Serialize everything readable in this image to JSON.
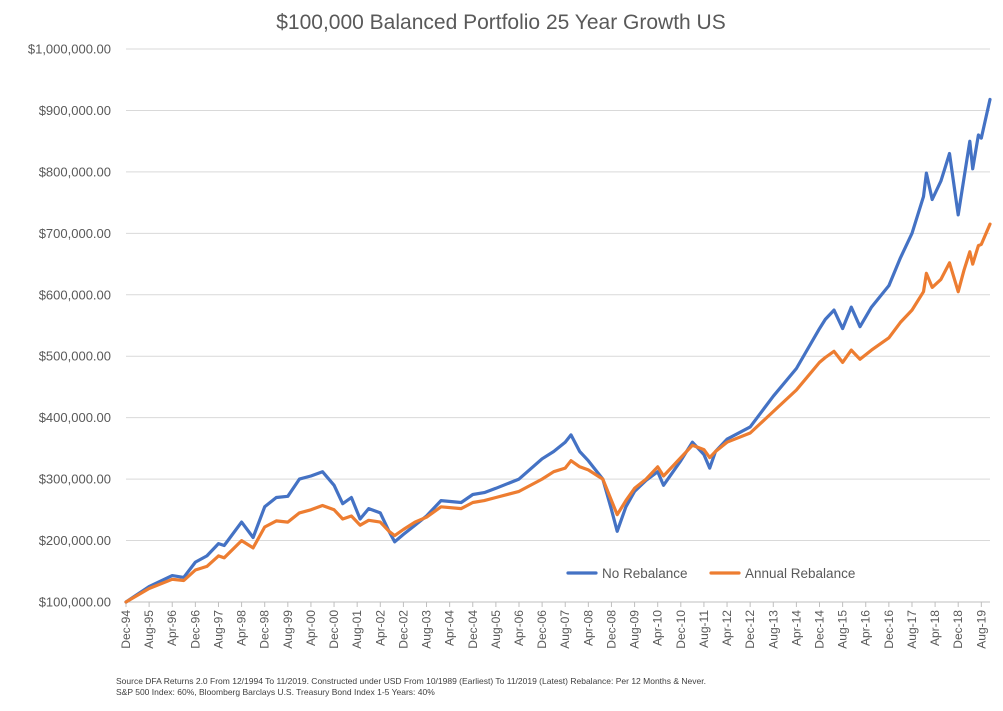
{
  "chart_data": {
    "type": "line",
    "title": "$100,000 Balanced Portfolio 25 Year Growth US",
    "xlabel": "",
    "ylabel": "",
    "ylim": [
      100000,
      1000000
    ],
    "y_ticks": [
      100000,
      200000,
      300000,
      400000,
      500000,
      600000,
      700000,
      800000,
      900000,
      1000000
    ],
    "y_tick_labels": [
      "$100,000.00",
      "$200,000.00",
      "$300,000.00",
      "$400,000.00",
      "$500,000.00",
      "$600,000.00",
      "$700,000.00",
      "$800,000.00",
      "$900,000.00",
      "$1,000,000.00"
    ],
    "x_range": [
      "1994-12",
      "2019-11"
    ],
    "x_ticks": [
      "1994-12",
      "1995-08",
      "1996-04",
      "1996-12",
      "1997-08",
      "1998-04",
      "1998-12",
      "1999-08",
      "2000-04",
      "2000-12",
      "2001-08",
      "2002-04",
      "2002-12",
      "2003-08",
      "2004-04",
      "2004-12",
      "2005-08",
      "2006-04",
      "2006-12",
      "2007-08",
      "2008-04",
      "2008-12",
      "2009-08",
      "2010-04",
      "2010-12",
      "2011-08",
      "2012-04",
      "2012-12",
      "2013-08",
      "2014-04",
      "2014-12",
      "2015-08",
      "2016-04",
      "2016-12",
      "2017-08",
      "2018-04",
      "2018-12",
      "2019-08"
    ],
    "x_tick_labels": [
      "Dec-94",
      "Aug-95",
      "Apr-96",
      "Dec-96",
      "Aug-97",
      "Apr-98",
      "Dec-98",
      "Aug-99",
      "Apr-00",
      "Dec-00",
      "Aug-01",
      "Apr-02",
      "Dec-02",
      "Aug-03",
      "Apr-04",
      "Dec-04",
      "Aug-05",
      "Apr-06",
      "Dec-06",
      "Aug-07",
      "Apr-08",
      "Dec-08",
      "Aug-09",
      "Apr-10",
      "Dec-10",
      "Aug-11",
      "Apr-12",
      "Dec-12",
      "Aug-13",
      "Apr-14",
      "Dec-14",
      "Aug-15",
      "Apr-16",
      "Dec-16",
      "Aug-17",
      "Apr-18",
      "Dec-18",
      "Aug-19"
    ],
    "grid": "horizontal",
    "legend": "bottom-right, inside plot",
    "series": [
      {
        "name": "No Rebalance",
        "color": "#4472C4",
        "points": [
          [
            "1994-12",
            100000
          ],
          [
            "1995-08",
            125000
          ],
          [
            "1996-04",
            143000
          ],
          [
            "1996-08",
            140000
          ],
          [
            "1996-12",
            165000
          ],
          [
            "1997-04",
            175000
          ],
          [
            "1997-08",
            195000
          ],
          [
            "1997-10",
            192000
          ],
          [
            "1998-04",
            230000
          ],
          [
            "1998-08",
            205000
          ],
          [
            "1998-12",
            255000
          ],
          [
            "1999-04",
            270000
          ],
          [
            "1999-08",
            272000
          ],
          [
            "1999-12",
            300000
          ],
          [
            "2000-04",
            305000
          ],
          [
            "2000-08",
            312000
          ],
          [
            "2000-12",
            290000
          ],
          [
            "2001-03",
            260000
          ],
          [
            "2001-06",
            270000
          ],
          [
            "2001-09",
            235000
          ],
          [
            "2001-12",
            252000
          ],
          [
            "2002-04",
            245000
          ],
          [
            "2002-07",
            215000
          ],
          [
            "2002-09",
            198000
          ],
          [
            "2002-12",
            210000
          ],
          [
            "2003-04",
            225000
          ],
          [
            "2003-08",
            240000
          ],
          [
            "2004-01",
            265000
          ],
          [
            "2004-08",
            262000
          ],
          [
            "2004-12",
            275000
          ],
          [
            "2005-04",
            278000
          ],
          [
            "2005-08",
            285000
          ],
          [
            "2006-04",
            300000
          ],
          [
            "2006-12",
            333000
          ],
          [
            "2007-04",
            345000
          ],
          [
            "2007-08",
            360000
          ],
          [
            "2007-10",
            372000
          ],
          [
            "2008-01",
            345000
          ],
          [
            "2008-04",
            330000
          ],
          [
            "2008-09",
            300000
          ],
          [
            "2008-12",
            250000
          ],
          [
            "2009-02",
            215000
          ],
          [
            "2009-05",
            255000
          ],
          [
            "2009-08",
            280000
          ],
          [
            "2009-12",
            298000
          ],
          [
            "2010-04",
            312000
          ],
          [
            "2010-06",
            290000
          ],
          [
            "2010-12",
            330000
          ],
          [
            "2011-04",
            360000
          ],
          [
            "2011-08",
            340000
          ],
          [
            "2011-10",
            318000
          ],
          [
            "2011-12",
            345000
          ],
          [
            "2012-04",
            365000
          ],
          [
            "2012-12",
            385000
          ],
          [
            "2013-08",
            435000
          ],
          [
            "2014-04",
            480000
          ],
          [
            "2014-12",
            545000
          ],
          [
            "2015-02",
            560000
          ],
          [
            "2015-05",
            575000
          ],
          [
            "2015-08",
            545000
          ],
          [
            "2015-11",
            580000
          ],
          [
            "2016-02",
            548000
          ],
          [
            "2016-06",
            580000
          ],
          [
            "2016-12",
            615000
          ],
          [
            "2017-04",
            660000
          ],
          [
            "2017-08",
            700000
          ],
          [
            "2017-12",
            760000
          ],
          [
            "2018-01",
            798000
          ],
          [
            "2018-03",
            755000
          ],
          [
            "2018-06",
            785000
          ],
          [
            "2018-09",
            830000
          ],
          [
            "2018-12",
            730000
          ],
          [
            "2019-02",
            790000
          ],
          [
            "2019-04",
            850000
          ],
          [
            "2019-05",
            805000
          ],
          [
            "2019-07",
            860000
          ],
          [
            "2019-08",
            855000
          ],
          [
            "2019-11",
            918000
          ]
        ]
      },
      {
        "name": "Annual Rebalance",
        "color": "#ED7D31",
        "points": [
          [
            "1994-12",
            100000
          ],
          [
            "1995-08",
            122000
          ],
          [
            "1996-04",
            137000
          ],
          [
            "1996-08",
            135000
          ],
          [
            "1996-12",
            152000
          ],
          [
            "1997-04",
            158000
          ],
          [
            "1997-08",
            175000
          ],
          [
            "1997-10",
            172000
          ],
          [
            "1998-04",
            200000
          ],
          [
            "1998-08",
            188000
          ],
          [
            "1998-12",
            222000
          ],
          [
            "1999-04",
            232000
          ],
          [
            "1999-08",
            230000
          ],
          [
            "1999-12",
            245000
          ],
          [
            "2000-04",
            250000
          ],
          [
            "2000-08",
            257000
          ],
          [
            "2000-12",
            250000
          ],
          [
            "2001-03",
            235000
          ],
          [
            "2001-06",
            240000
          ],
          [
            "2001-09",
            225000
          ],
          [
            "2001-12",
            233000
          ],
          [
            "2002-04",
            230000
          ],
          [
            "2002-07",
            215000
          ],
          [
            "2002-09",
            208000
          ],
          [
            "2002-12",
            218000
          ],
          [
            "2003-04",
            230000
          ],
          [
            "2003-08",
            238000
          ],
          [
            "2004-01",
            255000
          ],
          [
            "2004-08",
            252000
          ],
          [
            "2004-12",
            262000
          ],
          [
            "2005-04",
            265000
          ],
          [
            "2005-08",
            270000
          ],
          [
            "2006-04",
            280000
          ],
          [
            "2006-12",
            300000
          ],
          [
            "2007-04",
            312000
          ],
          [
            "2007-08",
            318000
          ],
          [
            "2007-10",
            330000
          ],
          [
            "2008-01",
            320000
          ],
          [
            "2008-04",
            315000
          ],
          [
            "2008-09",
            300000
          ],
          [
            "2008-12",
            265000
          ],
          [
            "2009-02",
            242000
          ],
          [
            "2009-05",
            265000
          ],
          [
            "2009-08",
            285000
          ],
          [
            "2009-12",
            300000
          ],
          [
            "2010-04",
            320000
          ],
          [
            "2010-06",
            305000
          ],
          [
            "2010-12",
            335000
          ],
          [
            "2011-04",
            355000
          ],
          [
            "2011-08",
            348000
          ],
          [
            "2011-10",
            335000
          ],
          [
            "2011-12",
            345000
          ],
          [
            "2012-04",
            360000
          ],
          [
            "2012-12",
            375000
          ],
          [
            "2013-08",
            410000
          ],
          [
            "2014-04",
            445000
          ],
          [
            "2014-12",
            490000
          ],
          [
            "2015-02",
            498000
          ],
          [
            "2015-05",
            508000
          ],
          [
            "2015-08",
            490000
          ],
          [
            "2015-11",
            510000
          ],
          [
            "2016-02",
            495000
          ],
          [
            "2016-06",
            510000
          ],
          [
            "2016-12",
            530000
          ],
          [
            "2017-04",
            555000
          ],
          [
            "2017-08",
            575000
          ],
          [
            "2017-12",
            605000
          ],
          [
            "2018-01",
            635000
          ],
          [
            "2018-03",
            612000
          ],
          [
            "2018-06",
            625000
          ],
          [
            "2018-09",
            652000
          ],
          [
            "2018-12",
            605000
          ],
          [
            "2019-02",
            640000
          ],
          [
            "2019-04",
            670000
          ],
          [
            "2019-05",
            650000
          ],
          [
            "2019-07",
            680000
          ],
          [
            "2019-08",
            682000
          ],
          [
            "2019-11",
            715000
          ]
        ]
      }
    ]
  },
  "footnote": {
    "line1": "Source DFA Returns 2.0 From 12/1994 To 11/2019. Constructed under USD From 10/1989 (Earliest) To 11/2019 (Latest) Rebalance: Per 12 Months & Never.",
    "line2": "S&P 500 Index: 60%, Bloomberg Barclays U.S. Treasury Bond Index 1-5 Years: 40%"
  }
}
